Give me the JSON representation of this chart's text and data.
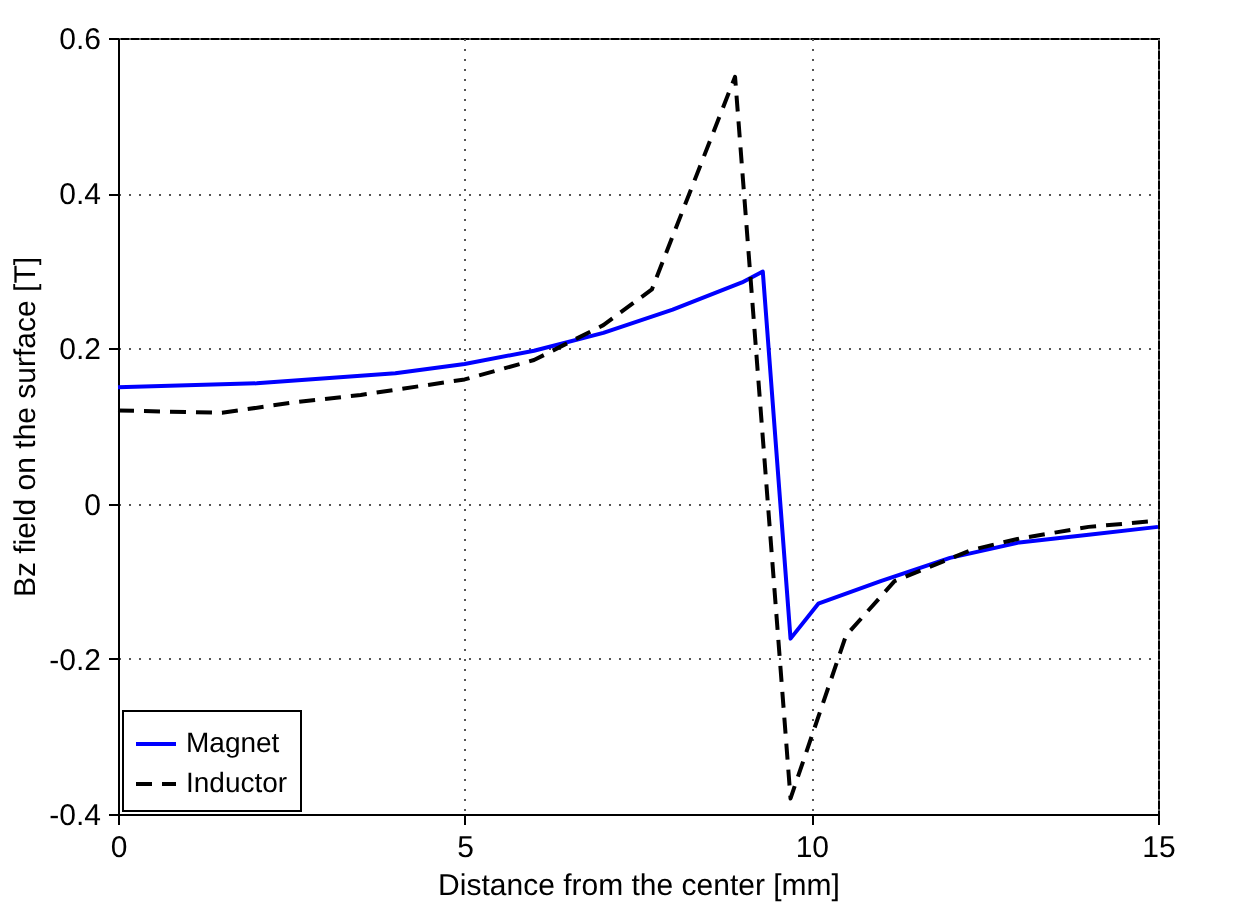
{
  "chart_data": {
    "type": "line",
    "xlabel": "Distance from the center [mm]",
    "ylabel": "Bz field on the surface [T]",
    "xlim": [
      0,
      15
    ],
    "ylim": [
      -0.4,
      0.6
    ],
    "xticks": [
      0,
      5,
      10,
      15
    ],
    "yticks": [
      -0.4,
      -0.2,
      0,
      0.2,
      0.4,
      0.6
    ],
    "grid": true,
    "legend": "bottom left",
    "marker": "none",
    "series": [
      {
        "name": "Magnet",
        "color": "#0000ff",
        "line_style": "solid",
        "x": [
          0,
          2,
          4,
          5,
          6,
          7,
          8,
          9,
          9.3,
          9.7,
          10.1,
          11,
          12,
          13,
          14,
          15
        ],
        "values": [
          0.15,
          0.155,
          0.168,
          0.18,
          0.197,
          0.22,
          0.25,
          0.285,
          0.299,
          -0.174,
          -0.129,
          -0.1,
          -0.07,
          -0.05,
          -0.04,
          -0.03
        ]
      },
      {
        "name": "Inductor",
        "color": "#000000",
        "line_style": "dashed",
        "x": [
          0,
          1.5,
          2.5,
          3.5,
          5,
          6,
          7,
          7.7,
          8.9,
          9.7,
          10.5,
          11.2,
          12.3,
          13,
          14,
          15
        ],
        "values": [
          0.12,
          0.117,
          0.13,
          0.14,
          0.16,
          0.185,
          0.23,
          0.276,
          0.55,
          -0.38,
          -0.17,
          -0.1,
          -0.06,
          -0.045,
          -0.03,
          -0.022
        ]
      }
    ]
  }
}
